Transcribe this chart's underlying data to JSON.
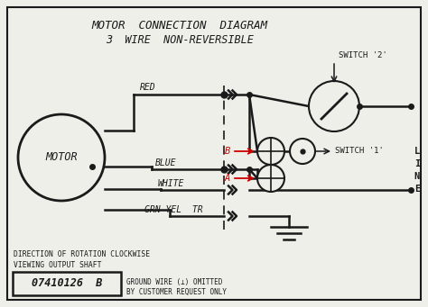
{
  "bg_color": "#efefea",
  "line_color": "#1a1a1a",
  "red_color": "#cc0000",
  "title1": "MOTOR  CONNECTION  DIAGRAM",
  "title2": "3  WIRE  NON-REVERSIBLE",
  "motor_label": "MOTOR",
  "switch2_label": "SWITCH '2'",
  "switch1_label": "SWITCH '1'",
  "line_label_chars": [
    "L",
    "I",
    "N",
    "E"
  ],
  "wire_labels": [
    "RED",
    "BLUE",
    "WHITE",
    "GRN-YEL  TR"
  ],
  "bottom_text1": "DIRECTION OF ROTATION CLOCKWISE",
  "bottom_text2": "VIEWING OUTPUT SHAFT",
  "part_number": "07410126  B",
  "ground_text1": "GROUND WIRE (⊥) OMITTED",
  "ground_text2": "BY CUSTOMER REQUEST ONLY"
}
